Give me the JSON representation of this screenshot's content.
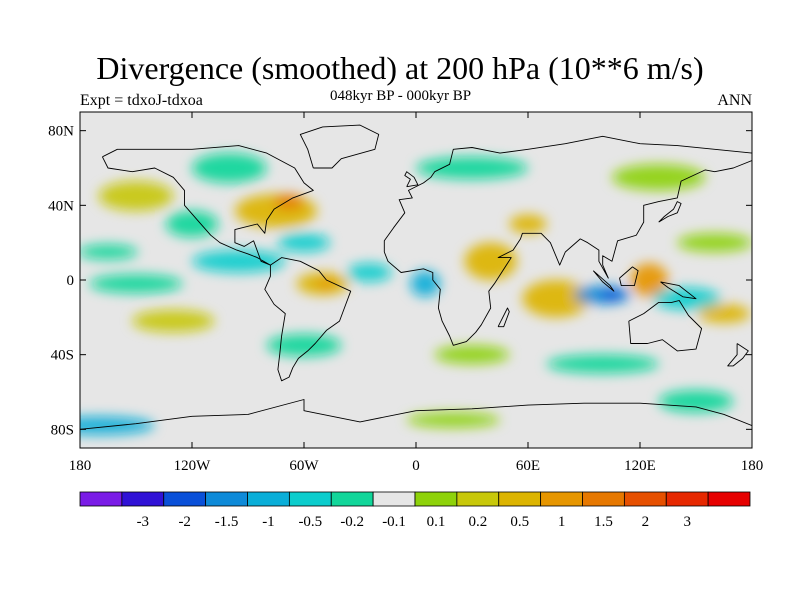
{
  "header": {
    "title": "Divergence (smoothed) at 200 hPa (10**6 m/s)",
    "experiment": "Expt = tdxoJ-tdxoa",
    "period": "048kyr BP - 000kyr BP",
    "season": "ANN"
  },
  "map": {
    "projection": "cylindrical equidistant",
    "lon_range": [
      -180,
      180
    ],
    "lat_range": [
      -90,
      90
    ],
    "lat_ticks": [
      {
        "lat": 80,
        "label": "80N"
      },
      {
        "lat": 40,
        "label": "40N"
      },
      {
        "lat": 0,
        "label": "0"
      },
      {
        "lat": -40,
        "label": "40S"
      },
      {
        "lat": -80,
        "label": "80S"
      }
    ],
    "lon_ticks": [
      {
        "lon": -180,
        "label": "180"
      },
      {
        "lon": -120,
        "label": "120W"
      },
      {
        "lon": -60,
        "label": "60W"
      },
      {
        "lon": 0,
        "label": "0"
      },
      {
        "lon": 60,
        "label": "60E"
      },
      {
        "lon": 120,
        "label": "120E"
      },
      {
        "lon": 180,
        "label": "180"
      }
    ]
  },
  "colorbar": {
    "colors": [
      "#7a1ce6",
      "#3012d6",
      "#0a50d8",
      "#0e8ad8",
      "#0aaed8",
      "#0ccdcd",
      "#12d69a",
      "#e6e6e6",
      "#8ed20a",
      "#c8c80a",
      "#dcb400",
      "#e69600",
      "#e67800",
      "#e65000",
      "#e62800",
      "#e60000"
    ],
    "labels": [
      "-3",
      "-2",
      "-1.5",
      "-1",
      "-0.5",
      "-0.2",
      "-0.1",
      "0.1",
      "0.2",
      "0.5",
      "1",
      "1.5",
      "2",
      "3"
    ]
  },
  "field_blobs": [
    {
      "lon": -75,
      "lat": 37,
      "rx": 22,
      "ry": 9,
      "level": 3
    },
    {
      "lon": -68,
      "lat": 42,
      "rx": 8,
      "ry": 4,
      "level": 5
    },
    {
      "lon": -150,
      "lat": 45,
      "rx": 20,
      "ry": 8,
      "level": 2
    },
    {
      "lon": -120,
      "lat": 30,
      "rx": 14,
      "ry": 7,
      "level": -1
    },
    {
      "lon": -60,
      "lat": 20,
      "rx": 14,
      "ry": 5,
      "level": -2
    },
    {
      "lon": -95,
      "lat": 10,
      "rx": 25,
      "ry": 6,
      "level": -2
    },
    {
      "lon": -165,
      "lat": 15,
      "rx": 16,
      "ry": 4,
      "level": -1
    },
    {
      "lon": -150,
      "lat": -2,
      "rx": 25,
      "ry": 5,
      "level": -1
    },
    {
      "lon": -50,
      "lat": -2,
      "rx": 14,
      "ry": 6,
      "level": 3
    },
    {
      "lon": -48,
      "lat": -2,
      "rx": 5,
      "ry": 3,
      "level": 4
    },
    {
      "lon": -25,
      "lat": 4,
      "rx": 12,
      "ry": 5,
      "level": -2
    },
    {
      "lon": 5,
      "lat": -2,
      "rx": 8,
      "ry": 7,
      "level": -3
    },
    {
      "lon": 40,
      "lat": 10,
      "rx": 14,
      "ry": 10,
      "level": 3
    },
    {
      "lon": 60,
      "lat": 30,
      "rx": 10,
      "ry": 5,
      "level": 3
    },
    {
      "lon": 75,
      "lat": -10,
      "rx": 18,
      "ry": 10,
      "level": 3
    },
    {
      "lon": 100,
      "lat": -8,
      "rx": 15,
      "ry": 5,
      "level": -4
    },
    {
      "lon": 105,
      "lat": -8,
      "rx": 6,
      "ry": 3,
      "level": -5
    },
    {
      "lon": 125,
      "lat": 0,
      "rx": 10,
      "ry": 9,
      "level": 4
    },
    {
      "lon": 145,
      "lat": -10,
      "rx": 18,
      "ry": 6,
      "level": -2
    },
    {
      "lon": 165,
      "lat": -18,
      "rx": 14,
      "ry": 5,
      "level": 3
    },
    {
      "lon": 160,
      "lat": 20,
      "rx": 20,
      "ry": 5,
      "level": 1
    },
    {
      "lon": 30,
      "lat": 60,
      "rx": 30,
      "ry": 6,
      "level": -1
    },
    {
      "lon": -100,
      "lat": 60,
      "rx": 20,
      "ry": 8,
      "level": -1
    },
    {
      "lon": 130,
      "lat": 55,
      "rx": 25,
      "ry": 7,
      "level": 1
    },
    {
      "lon": -130,
      "lat": -22,
      "rx": 22,
      "ry": 6,
      "level": 2
    },
    {
      "lon": -60,
      "lat": -35,
      "rx": 20,
      "ry": 6,
      "level": -1
    },
    {
      "lon": 30,
      "lat": -40,
      "rx": 20,
      "ry": 5,
      "level": 1
    },
    {
      "lon": 100,
      "lat": -45,
      "rx": 30,
      "ry": 5,
      "level": -1
    },
    {
      "lon": -170,
      "lat": -78,
      "rx": 30,
      "ry": 5,
      "level": -3
    },
    {
      "lon": 20,
      "lat": -75,
      "rx": 25,
      "ry": 4,
      "level": 1
    },
    {
      "lon": 150,
      "lat": -65,
      "rx": 20,
      "ry": 6,
      "level": -1
    }
  ],
  "land_outlines": [
    {
      "name": "north-america",
      "points": [
        [
          -168,
          66
        ],
        [
          -160,
          70
        ],
        [
          -140,
          70
        ],
        [
          -120,
          70
        ],
        [
          -95,
          72
        ],
        [
          -80,
          68
        ],
        [
          -65,
          60
        ],
        [
          -60,
          52
        ],
        [
          -55,
          48
        ],
        [
          -66,
          44
        ],
        [
          -76,
          38
        ],
        [
          -80,
          32
        ],
        [
          -81,
          25
        ],
        [
          -85,
          30
        ],
        [
          -97,
          27
        ],
        [
          -97,
          20
        ],
        [
          -92,
          18
        ],
        [
          -87,
          21
        ],
        [
          -83,
          10
        ],
        [
          -78,
          8
        ],
        [
          -85,
          12
        ],
        [
          -90,
          14
        ],
        [
          -96,
          16
        ],
        [
          -105,
          20
        ],
        [
          -110,
          24
        ],
        [
          -117,
          32
        ],
        [
          -124,
          40
        ],
        [
          -124,
          48
        ],
        [
          -130,
          55
        ],
        [
          -140,
          60
        ],
        [
          -152,
          58
        ],
        [
          -165,
          60
        ],
        [
          -168,
          66
        ]
      ]
    },
    {
      "name": "greenland",
      "points": [
        [
          -55,
          60
        ],
        [
          -45,
          60
        ],
        [
          -40,
          65
        ],
        [
          -22,
          70
        ],
        [
          -20,
          78
        ],
        [
          -30,
          83
        ],
        [
          -50,
          82
        ],
        [
          -62,
          78
        ],
        [
          -58,
          70
        ],
        [
          -55,
          60
        ]
      ]
    },
    {
      "name": "south-america",
      "points": [
        [
          -78,
          8
        ],
        [
          -72,
          12
        ],
        [
          -62,
          10
        ],
        [
          -52,
          5
        ],
        [
          -48,
          0
        ],
        [
          -35,
          -6
        ],
        [
          -38,
          -14
        ],
        [
          -41,
          -22
        ],
        [
          -48,
          -27
        ],
        [
          -54,
          -34
        ],
        [
          -58,
          -38
        ],
        [
          -63,
          -42
        ],
        [
          -66,
          -47
        ],
        [
          -68,
          -52
        ],
        [
          -72,
          -54
        ],
        [
          -74,
          -48
        ],
        [
          -73,
          -40
        ],
        [
          -72,
          -30
        ],
        [
          -70,
          -18
        ],
        [
          -76,
          -13
        ],
        [
          -81,
          -5
        ],
        [
          -78,
          2
        ],
        [
          -78,
          8
        ]
      ]
    },
    {
      "name": "africa-eurasia",
      "points": [
        [
          -17,
          15
        ],
        [
          -17,
          21
        ],
        [
          -12,
          28
        ],
        [
          -6,
          36
        ],
        [
          -9,
          43
        ],
        [
          -2,
          44
        ],
        [
          -4,
          48
        ],
        [
          4,
          52
        ],
        [
          8,
          55
        ],
        [
          10,
          58
        ],
        [
          18,
          62
        ],
        [
          20,
          70
        ],
        [
          30,
          71
        ],
        [
          45,
          68
        ],
        [
          60,
          70
        ],
        [
          80,
          73
        ],
        [
          100,
          77
        ],
        [
          120,
          73
        ],
        [
          140,
          72
        ],
        [
          160,
          70
        ],
        [
          180,
          68
        ],
        [
          180,
          64
        ],
        [
          170,
          60
        ],
        [
          160,
          58
        ],
        [
          155,
          59
        ],
        [
          142,
          53
        ],
        [
          140,
          44
        ],
        [
          130,
          42
        ],
        [
          122,
          40
        ],
        [
          122,
          31
        ],
        [
          118,
          24
        ],
        [
          108,
          21
        ],
        [
          105,
          10
        ],
        [
          100,
          13
        ],
        [
          100,
          8
        ],
        [
          103,
          1
        ],
        [
          98,
          10
        ],
        [
          98,
          16
        ],
        [
          92,
          20
        ],
        [
          88,
          22
        ],
        [
          80,
          15
        ],
        [
          77,
          8
        ],
        [
          72,
          20
        ],
        [
          67,
          25
        ],
        [
          57,
          25
        ],
        [
          56,
          22
        ],
        [
          52,
          16
        ],
        [
          44,
          12
        ],
        [
          51,
          12
        ],
        [
          42,
          -2
        ],
        [
          39,
          -6
        ],
        [
          40,
          -15
        ],
        [
          35,
          -24
        ],
        [
          32,
          -28
        ],
        [
          27,
          -33
        ],
        [
          20,
          -35
        ],
        [
          18,
          -30
        ],
        [
          14,
          -22
        ],
        [
          12,
          -15
        ],
        [
          13,
          -5
        ],
        [
          9,
          0
        ],
        [
          9,
          4
        ],
        [
          4,
          6
        ],
        [
          -8,
          4
        ],
        [
          -15,
          10
        ],
        [
          -17,
          15
        ]
      ]
    },
    {
      "name": "australia",
      "points": [
        [
          114,
          -22
        ],
        [
          122,
          -18
        ],
        [
          130,
          -12
        ],
        [
          137,
          -12
        ],
        [
          141,
          -11
        ],
        [
          146,
          -19
        ],
        [
          153,
          -26
        ],
        [
          150,
          -37
        ],
        [
          140,
          -38
        ],
        [
          132,
          -32
        ],
        [
          124,
          -34
        ],
        [
          115,
          -34
        ],
        [
          114,
          -22
        ]
      ]
    },
    {
      "name": "antarctica",
      "points": [
        [
          -180,
          -80
        ],
        [
          -150,
          -77
        ],
        [
          -120,
          -73
        ],
        [
          -90,
          -72
        ],
        [
          -60,
          -64
        ],
        [
          -60,
          -70
        ],
        [
          -30,
          -76
        ],
        [
          0,
          -70
        ],
        [
          30,
          -69
        ],
        [
          60,
          -67
        ],
        [
          90,
          -66
        ],
        [
          120,
          -66
        ],
        [
          150,
          -68
        ],
        [
          165,
          -72
        ],
        [
          180,
          -78
        ]
      ]
    },
    {
      "name": "madagascar",
      "points": [
        [
          44,
          -25
        ],
        [
          49,
          -15
        ],
        [
          50,
          -17
        ],
        [
          47,
          -25
        ],
        [
          44,
          -25
        ]
      ]
    },
    {
      "name": "borneo",
      "points": [
        [
          109,
          1
        ],
        [
          116,
          7
        ],
        [
          119,
          5
        ],
        [
          117,
          -3
        ],
        [
          110,
          -3
        ],
        [
          109,
          1
        ]
      ]
    },
    {
      "name": "sumatra",
      "points": [
        [
          95,
          5
        ],
        [
          104,
          -3
        ],
        [
          106,
          -6
        ],
        [
          100,
          -1
        ],
        [
          95,
          5
        ]
      ]
    },
    {
      "name": "new-guinea",
      "points": [
        [
          131,
          -1
        ],
        [
          141,
          -3
        ],
        [
          150,
          -10
        ],
        [
          143,
          -9
        ],
        [
          135,
          -4
        ],
        [
          131,
          -1
        ]
      ]
    },
    {
      "name": "japan",
      "points": [
        [
          130,
          31
        ],
        [
          135,
          34
        ],
        [
          140,
          36
        ],
        [
          142,
          41
        ],
        [
          140,
          42
        ],
        [
          138,
          38
        ],
        [
          133,
          34
        ],
        [
          130,
          31
        ]
      ]
    },
    {
      "name": "uk",
      "points": [
        [
          -5,
          50
        ],
        [
          1,
          51
        ],
        [
          -1,
          55
        ],
        [
          -5,
          58
        ],
        [
          -6,
          56
        ],
        [
          -3,
          54
        ],
        [
          -5,
          50
        ]
      ]
    },
    {
      "name": "new-zealand",
      "points": [
        [
          172,
          -34
        ],
        [
          178,
          -38
        ],
        [
          175,
          -42
        ],
        [
          170,
          -46
        ],
        [
          167,
          -46
        ],
        [
          172,
          -40
        ],
        [
          172,
          -34
        ]
      ]
    }
  ]
}
